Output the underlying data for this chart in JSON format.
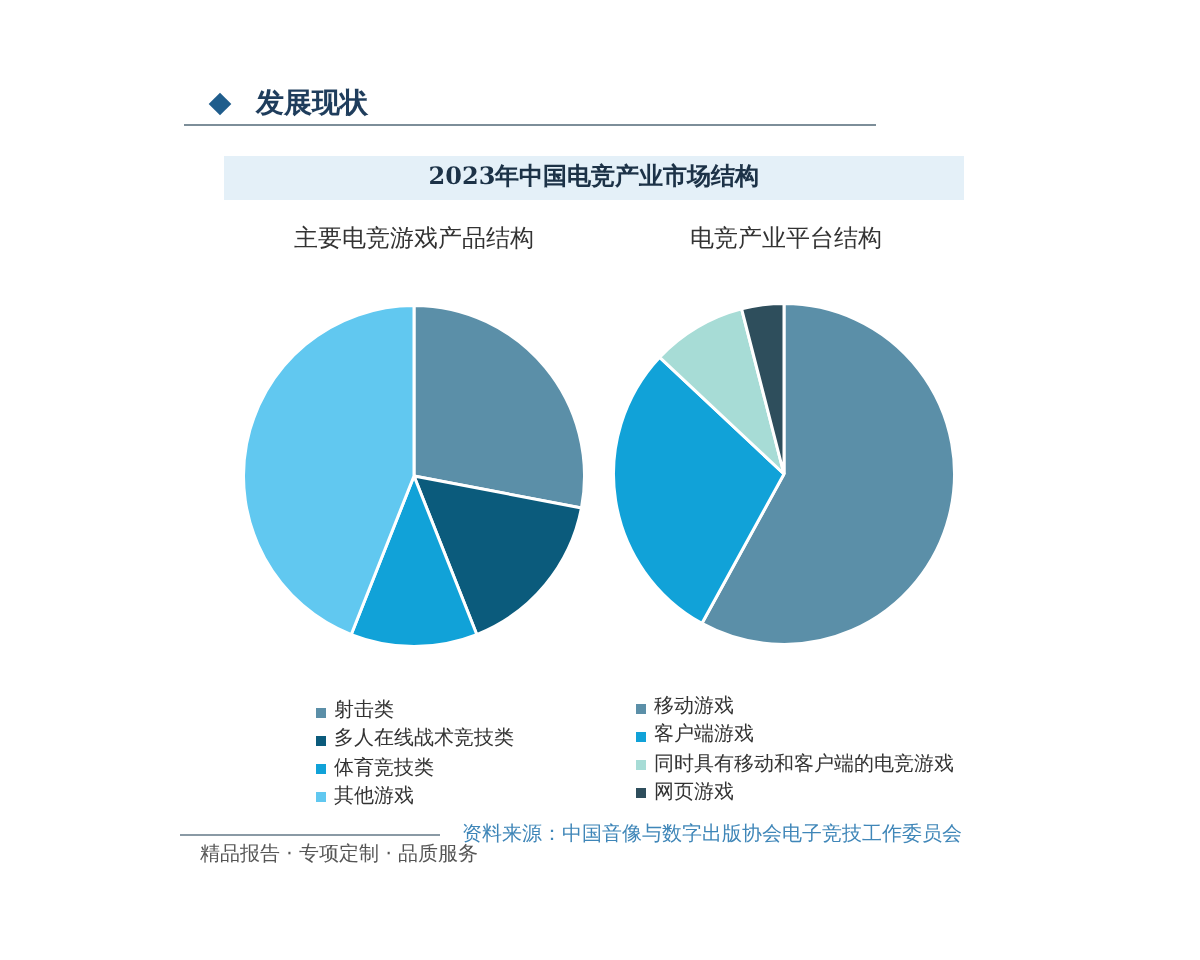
{
  "chart_data": [
    {
      "type": "pie",
      "title": "2023年中国电竞产业市场结构",
      "subtitle": "主要电竞游戏产品结构",
      "categories": [
        "射击类",
        "多人在线战术竞技类",
        "体育竞技类",
        "其他游戏"
      ],
      "values": [
        28,
        16,
        12,
        44
      ],
      "colors": [
        "#5b8fa8",
        "#0b5b7c",
        "#11a2d8",
        "#61c8f0"
      ],
      "legend": "bottom",
      "annotations": [
        "发展现状",
        "精品报告 · 专项定制 · 品质服务"
      ]
    },
    {
      "type": "pie",
      "subtitle": "电竞产业平台结构",
      "categories": [
        "移动游戏",
        "客户端游戏",
        "同时具有移动和客户端的电竞游戏",
        "网页游戏"
      ],
      "values": [
        58,
        29,
        9,
        4
      ],
      "colors": [
        "#5b8fa8",
        "#11a2d8",
        "#a7dcd6",
        "#2e4e5c"
      ],
      "legend": "bottom",
      "annotations": [
        "资料来源：中国音像与数字出版协会电子竞技工作委员会"
      ]
    }
  ]
}
